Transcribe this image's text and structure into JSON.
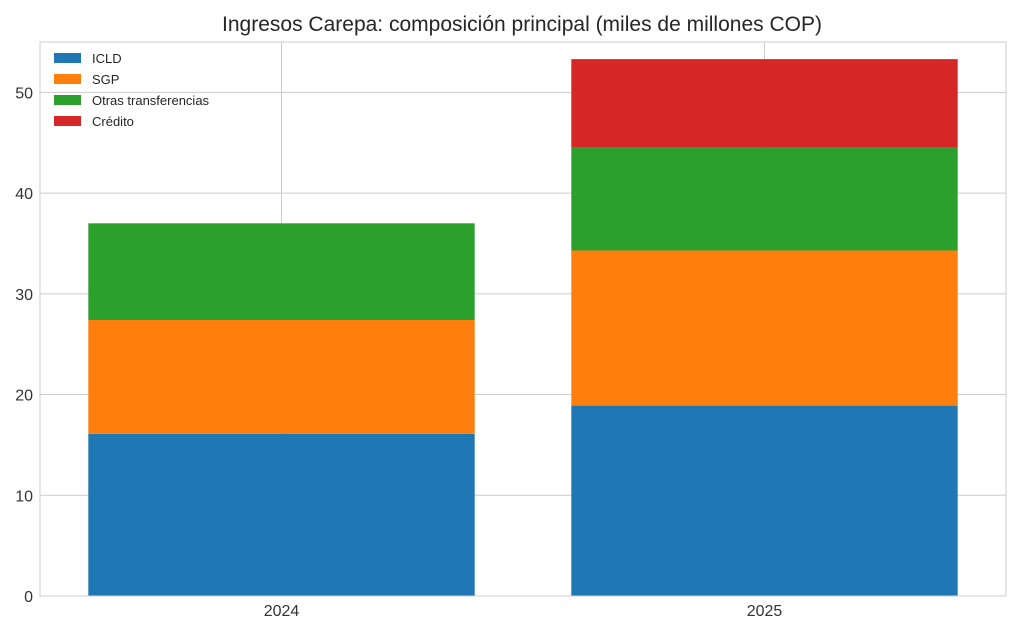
{
  "chart_data": {
    "type": "bar",
    "stacked": true,
    "title": "Ingresos Carepa: composición principal (miles de millones COP)",
    "xlabel": "",
    "ylabel": "",
    "categories": [
      "2024",
      "2025"
    ],
    "series": [
      {
        "name": "ICLD",
        "color": "#1f77b4",
        "values": [
          16.1,
          18.9
        ]
      },
      {
        "name": "SGP",
        "color": "#ff7f0e",
        "values": [
          11.3,
          15.4
        ]
      },
      {
        "name": "Otras transferencias",
        "color": "#2ca02c",
        "values": [
          9.6,
          10.2
        ]
      },
      {
        "name": "Crédito",
        "color": "#d62728",
        "values": [
          0,
          8.8
        ]
      }
    ],
    "ylim": [
      0,
      55
    ],
    "yticks": [
      0,
      10,
      20,
      30,
      40,
      50
    ],
    "grid": true,
    "legend_position": "top-left"
  }
}
